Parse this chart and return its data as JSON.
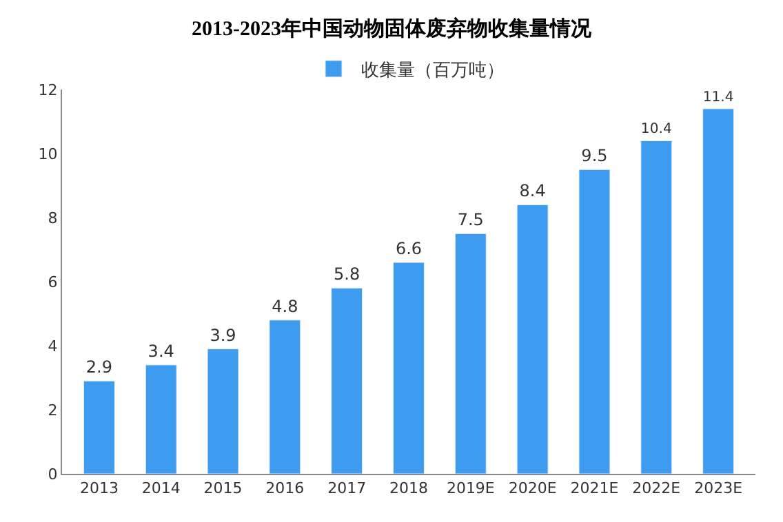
{
  "chart_data": {
    "type": "bar",
    "title": "2013-2023年中国动物固体废弃物收集量情况",
    "categories": [
      "2013",
      "2014",
      "2015",
      "2016",
      "2017",
      "2018",
      "2019E",
      "2020E",
      "2021E",
      "2022E",
      "2023E"
    ],
    "series": [
      {
        "name": "收集量（百万吨）",
        "color": "#3d9cf0",
        "values": [
          2.9,
          3.4,
          3.9,
          4.8,
          5.8,
          6.6,
          7.5,
          8.4,
          9.5,
          10.4,
          11.4
        ]
      }
    ],
    "ylim": [
      0,
      12
    ],
    "yticks": [
      0,
      2,
      4,
      6,
      8,
      10,
      12
    ],
    "legend": "top",
    "data_labels": true
  }
}
